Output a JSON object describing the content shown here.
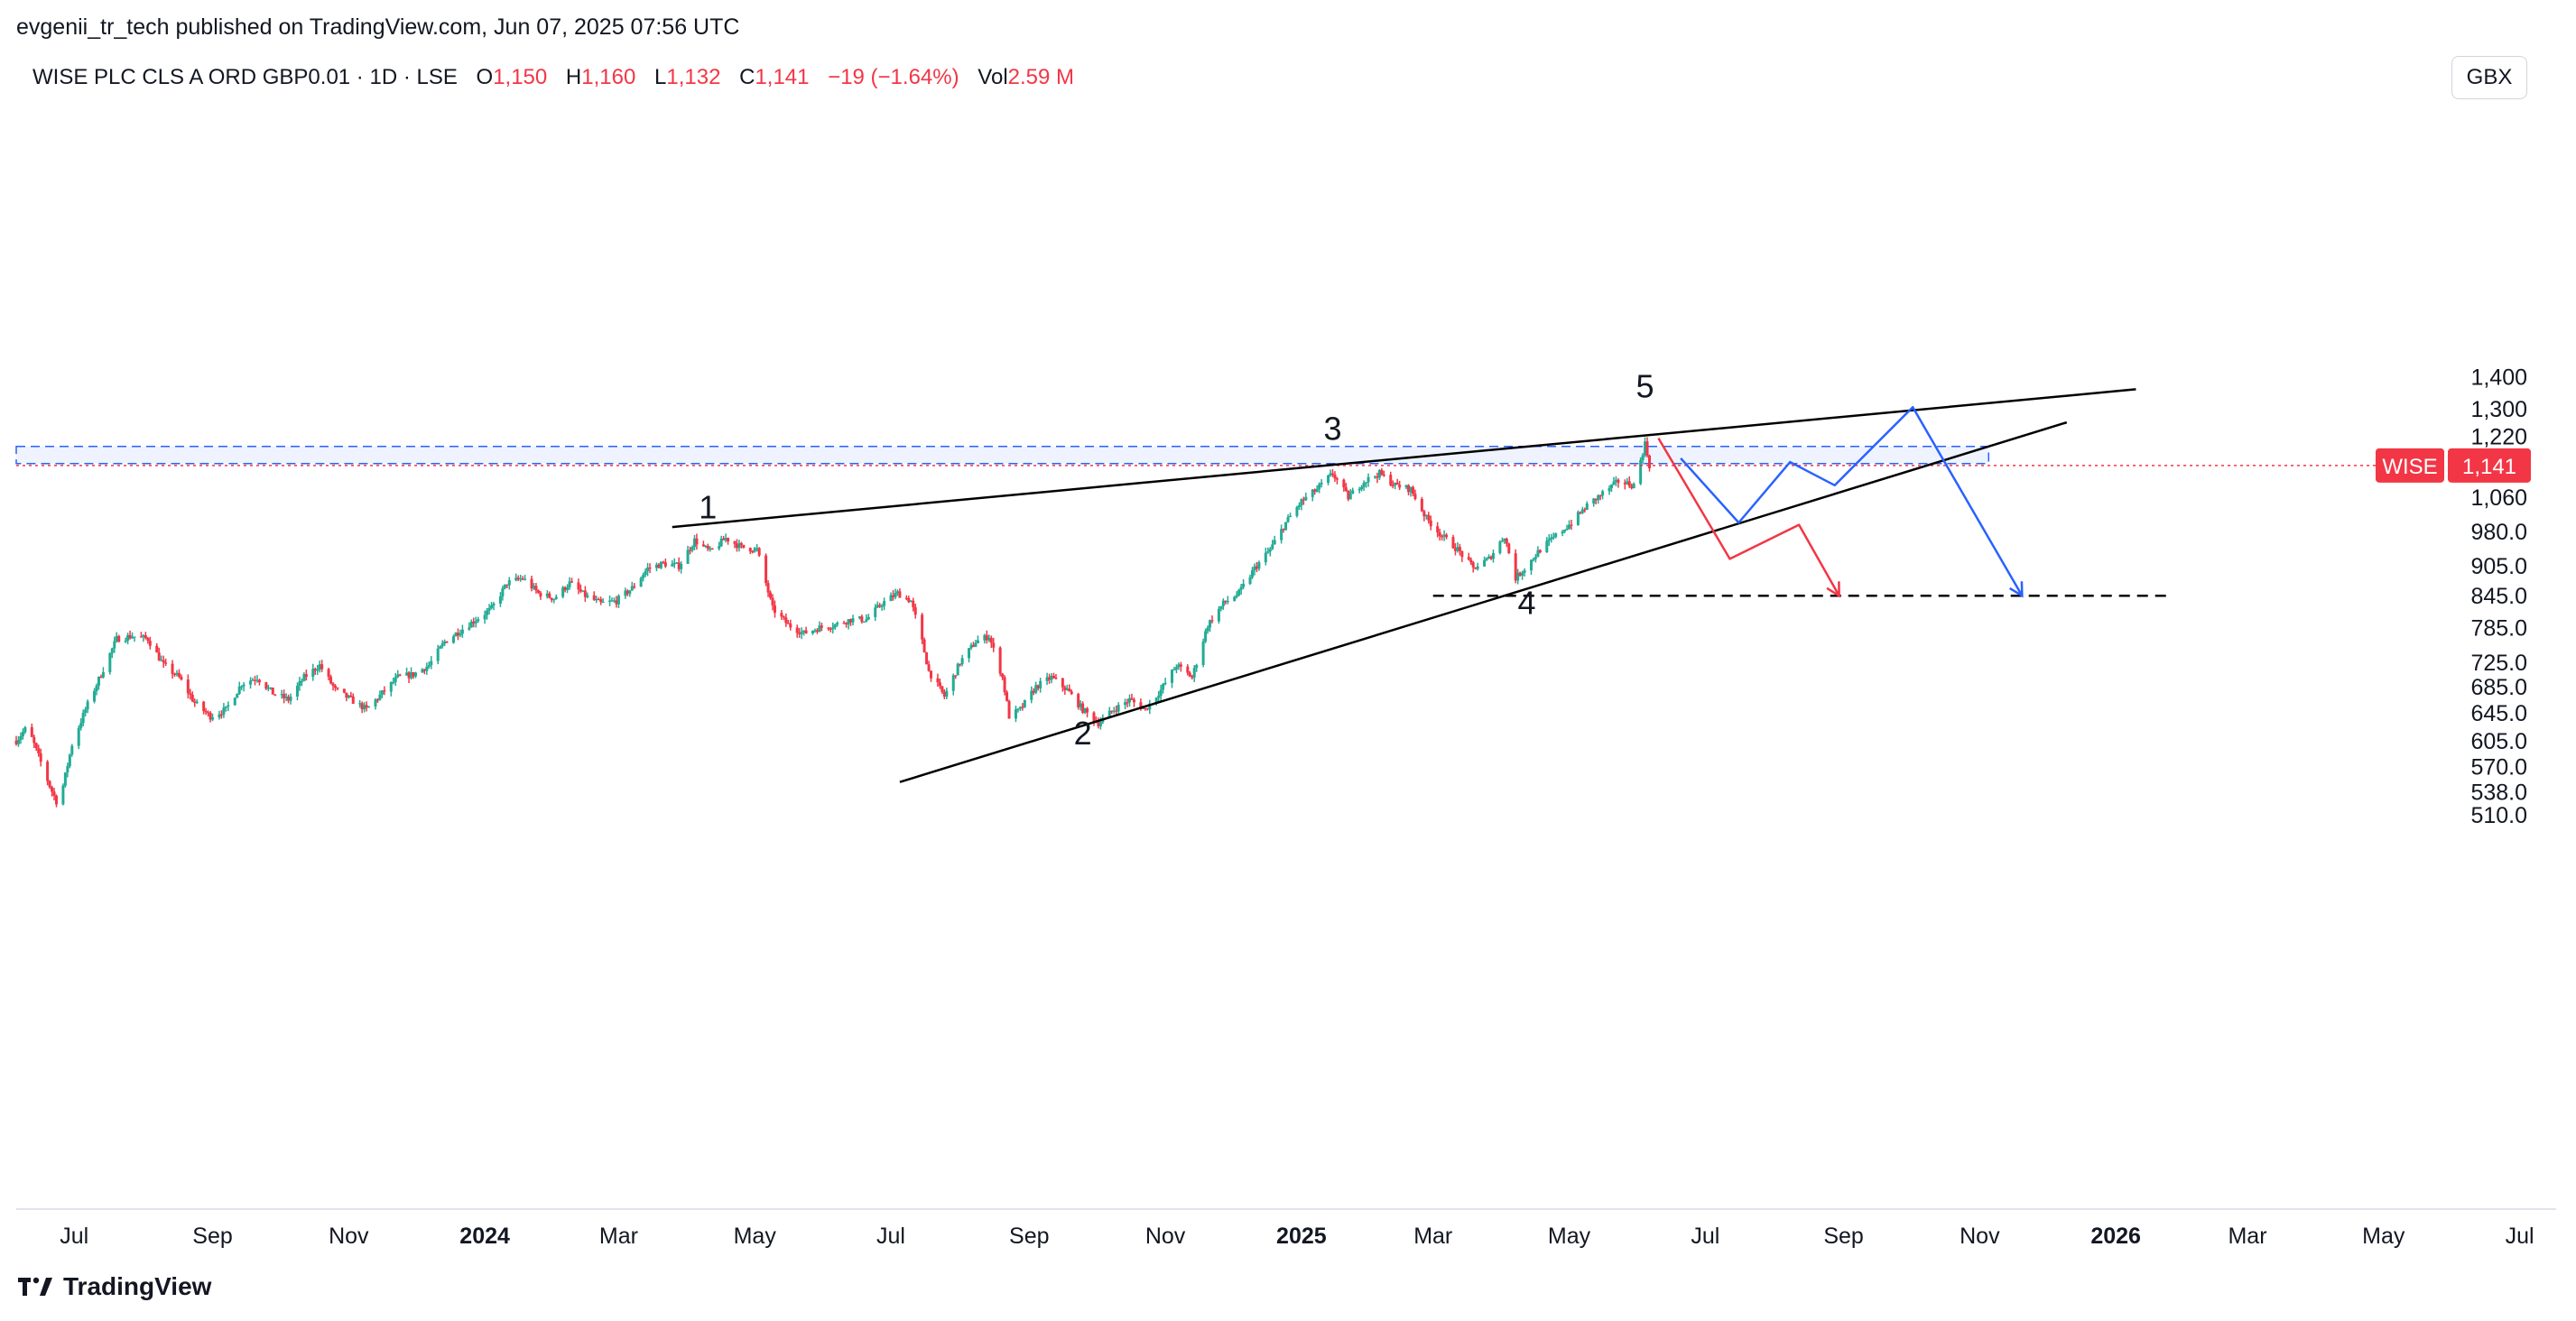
{
  "publisher_line": "evgenii_tr_tech published on TradingView.com, Jun 07, 2025 07:56 UTC",
  "legend": {
    "symbol": "WISE PLC CLS A ORD GBP0.01 · 1D · LSE",
    "o_key": "O",
    "o_val": "1,150",
    "h_key": "H",
    "h_val": "1,160",
    "l_key": "L",
    "l_val": "1,132",
    "c_key": "C",
    "c_val": "1,141",
    "change": "−19 (−1.64%)",
    "vol_key": "Vol",
    "vol_val": "2.59 M"
  },
  "currency_button": "GBX",
  "brand": "TradingView",
  "colors": {
    "up": "#22ab94",
    "down": "#f23645",
    "blue": "#2962ff",
    "line": "#000000",
    "grid": "#e0e3eb"
  },
  "chart_data": {
    "type": "candlestick",
    "symbol": "WISE",
    "interval": "1D",
    "y_scale": "log",
    "ylim": [
      500,
      1470
    ],
    "xlim": [
      "2023-06-05",
      "2026-07-31"
    ],
    "y_ticks": [
      "1,400",
      "1,300",
      "1,220",
      "1,060",
      "980.0",
      "905.0",
      "845.0",
      "785.0",
      "725.0",
      "685.0",
      "645.0",
      "605.0",
      "570.0",
      "538.0",
      "510.0"
    ],
    "x_ticks": [
      {
        "label": "Jul",
        "date": "2023-07-01",
        "bold": false
      },
      {
        "label": "Sep",
        "date": "2023-09-01",
        "bold": false
      },
      {
        "label": "Nov",
        "date": "2023-11-01",
        "bold": false
      },
      {
        "label": "2024",
        "date": "2024-01-01",
        "bold": true
      },
      {
        "label": "Mar",
        "date": "2024-03-01",
        "bold": false
      },
      {
        "label": "May",
        "date": "2024-05-01",
        "bold": false
      },
      {
        "label": "Jul",
        "date": "2024-07-01",
        "bold": false
      },
      {
        "label": "Sep",
        "date": "2024-09-01",
        "bold": false
      },
      {
        "label": "Nov",
        "date": "2024-11-01",
        "bold": false
      },
      {
        "label": "2025",
        "date": "2025-01-01",
        "bold": true
      },
      {
        "label": "Mar",
        "date": "2025-03-01",
        "bold": false
      },
      {
        "label": "May",
        "date": "2025-05-01",
        "bold": false
      },
      {
        "label": "Jul",
        "date": "2025-07-01",
        "bold": false
      },
      {
        "label": "Sep",
        "date": "2025-09-01",
        "bold": false
      },
      {
        "label": "Nov",
        "date": "2025-11-01",
        "bold": false
      },
      {
        "label": "2026",
        "date": "2026-01-01",
        "bold": true
      },
      {
        "label": "Mar",
        "date": "2026-03-01",
        "bold": false
      },
      {
        "label": "May",
        "date": "2026-05-01",
        "bold": false
      },
      {
        "label": "Jul",
        "date": "2026-07-01",
        "bold": false
      }
    ],
    "close_path": [
      [
        "2023-06-05",
        605
      ],
      [
        "2023-06-10",
        625
      ],
      [
        "2023-06-20",
        545
      ],
      [
        "2023-06-24",
        520
      ],
      [
        "2023-06-30",
        600
      ],
      [
        "2023-07-06",
        650
      ],
      [
        "2023-07-13",
        705
      ],
      [
        "2023-07-20",
        765
      ],
      [
        "2023-07-27",
        770
      ],
      [
        "2023-08-03",
        765
      ],
      [
        "2023-08-10",
        720
      ],
      [
        "2023-08-17",
        700
      ],
      [
        "2023-08-24",
        660
      ],
      [
        "2023-08-31",
        640
      ],
      [
        "2023-09-07",
        650
      ],
      [
        "2023-09-14",
        690
      ],
      [
        "2023-09-21",
        700
      ],
      [
        "2023-09-28",
        675
      ],
      [
        "2023-10-05",
        665
      ],
      [
        "2023-10-12",
        700
      ],
      [
        "2023-10-19",
        720
      ],
      [
        "2023-10-26",
        680
      ],
      [
        "2023-11-02",
        665
      ],
      [
        "2023-11-09",
        650
      ],
      [
        "2023-11-16",
        675
      ],
      [
        "2023-11-23",
        700
      ],
      [
        "2023-11-30",
        705
      ],
      [
        "2023-12-07",
        720
      ],
      [
        "2023-12-14",
        760
      ],
      [
        "2023-12-21",
        780
      ],
      [
        "2023-12-28",
        800
      ],
      [
        "2024-01-04",
        820
      ],
      [
        "2024-01-11",
        870
      ],
      [
        "2024-01-18",
        880
      ],
      [
        "2024-01-25",
        850
      ],
      [
        "2024-02-01",
        840
      ],
      [
        "2024-02-08",
        870
      ],
      [
        "2024-02-15",
        845
      ],
      [
        "2024-02-22",
        830
      ],
      [
        "2024-02-29",
        835
      ],
      [
        "2024-03-07",
        860
      ],
      [
        "2024-03-14",
        900
      ],
      [
        "2024-03-21",
        910
      ],
      [
        "2024-03-28",
        905
      ],
      [
        "2024-04-04",
        960
      ],
      [
        "2024-04-11",
        935
      ],
      [
        "2024-04-18",
        965
      ],
      [
        "2024-04-25",
        945
      ],
      [
        "2024-05-02",
        940
      ],
      [
        "2024-05-09",
        820
      ],
      [
        "2024-05-16",
        790
      ],
      [
        "2024-05-23",
        775
      ],
      [
        "2024-05-30",
        785
      ],
      [
        "2024-06-06",
        790
      ],
      [
        "2024-06-13",
        800
      ],
      [
        "2024-06-20",
        800
      ],
      [
        "2024-06-27",
        830
      ],
      [
        "2024-07-04",
        850
      ],
      [
        "2024-07-10",
        835
      ],
      [
        "2024-07-15",
        760
      ],
      [
        "2024-07-18",
        710
      ],
      [
        "2024-07-25",
        670
      ],
      [
        "2024-08-01",
        725
      ],
      [
        "2024-08-08",
        760
      ],
      [
        "2024-08-14",
        770
      ],
      [
        "2024-08-20",
        700
      ],
      [
        "2024-08-23",
        640
      ],
      [
        "2024-08-28",
        650
      ],
      [
        "2024-09-04",
        685
      ],
      [
        "2024-09-11",
        700
      ],
      [
        "2024-09-18",
        680
      ],
      [
        "2024-09-25",
        650
      ],
      [
        "2024-10-02",
        630
      ],
      [
        "2024-10-09",
        650
      ],
      [
        "2024-10-16",
        665
      ],
      [
        "2024-10-23",
        650
      ],
      [
        "2024-10-30",
        680
      ],
      [
        "2024-11-06",
        720
      ],
      [
        "2024-11-13",
        700
      ],
      [
        "2024-11-20",
        790
      ],
      [
        "2024-11-27",
        830
      ],
      [
        "2024-12-04",
        850
      ],
      [
        "2024-12-11",
        900
      ],
      [
        "2024-12-18",
        940
      ],
      [
        "2024-12-25",
        1000
      ],
      [
        "2025-01-01",
        1050
      ],
      [
        "2025-01-08",
        1080
      ],
      [
        "2025-01-15",
        1120
      ],
      [
        "2025-01-22",
        1060
      ],
      [
        "2025-01-29",
        1100
      ],
      [
        "2025-02-05",
        1120
      ],
      [
        "2025-02-12",
        1090
      ],
      [
        "2025-02-19",
        1080
      ],
      [
        "2025-02-26",
        1010
      ],
      [
        "2025-03-05",
        970
      ],
      [
        "2025-03-12",
        940
      ],
      [
        "2025-03-19",
        900
      ],
      [
        "2025-03-26",
        920
      ],
      [
        "2025-04-02",
        970
      ],
      [
        "2025-04-07",
        880
      ],
      [
        "2025-04-11",
        900
      ],
      [
        "2025-04-18",
        940
      ],
      [
        "2025-04-25",
        970
      ],
      [
        "2025-05-02",
        1000
      ],
      [
        "2025-05-09",
        1040
      ],
      [
        "2025-05-16",
        1070
      ],
      [
        "2025-05-23",
        1100
      ],
      [
        "2025-05-30",
        1090
      ],
      [
        "2025-06-04",
        1200
      ],
      [
        "2025-06-06",
        1141
      ]
    ],
    "last_price": {
      "symbol_label": "WISE",
      "value": "1,141",
      "price": 1141
    },
    "annotations": {
      "upper_trendline": [
        [
          "2024-03-25",
          990
        ],
        [
          "2026-01-10",
          1360
        ]
      ],
      "lower_trendline": [
        [
          "2024-07-05",
          550
        ],
        [
          "2025-12-10",
          1260
        ]
      ],
      "support_line": [
        [
          "2025-03-01",
          845
        ],
        [
          "2026-01-25",
          845
        ]
      ],
      "resistance_band": [
        [
          "2023-06-05",
          1146,
          1192
        ],
        [
          "2025-11-05",
          1146,
          1192
        ]
      ],
      "wave_labels": [
        {
          "text": "1",
          "date": "2024-04-10",
          "price": 1010
        },
        {
          "text": "2",
          "date": "2024-09-25",
          "price": 600
        },
        {
          "text": "3",
          "date": "2025-01-15",
          "price": 1210
        },
        {
          "text": "4",
          "date": "2025-04-12",
          "price": 810
        },
        {
          "text": "5",
          "date": "2025-06-04",
          "price": 1335
        }
      ],
      "red_projection": [
        [
          "2025-06-10",
          1215
        ],
        [
          "2025-07-12",
          920
        ],
        [
          "2025-08-12",
          995
        ],
        [
          "2025-08-30",
          845
        ]
      ],
      "blue_projection": [
        [
          "2025-06-20",
          1160
        ],
        [
          "2025-07-16",
          1000
        ],
        [
          "2025-08-08",
          1150
        ],
        [
          "2025-08-28",
          1090
        ],
        [
          "2025-10-02",
          1305
        ],
        [
          "2025-11-20",
          845
        ]
      ]
    }
  }
}
